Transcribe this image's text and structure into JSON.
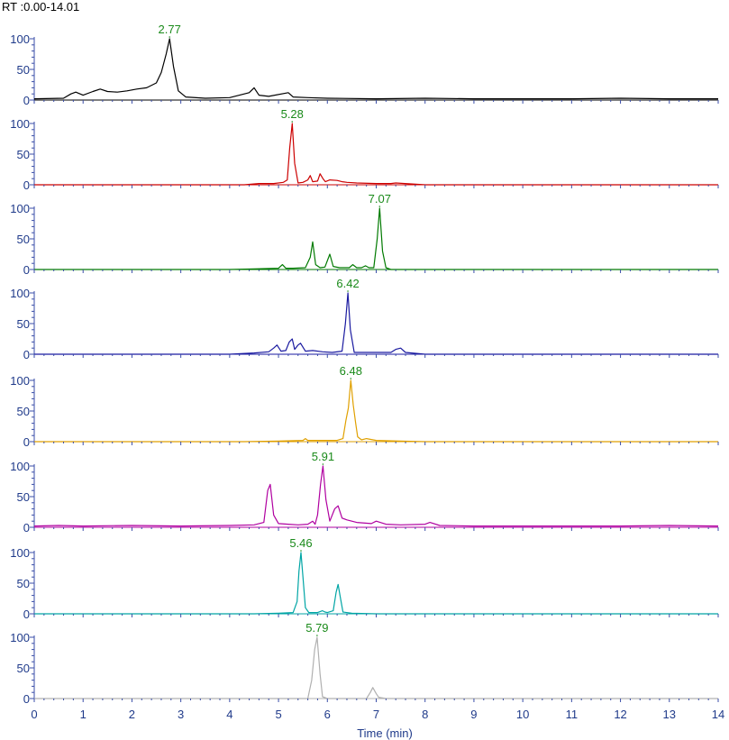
{
  "header": {
    "rt_range": "RT :0.00-14.01"
  },
  "chart_data": {
    "type": "line",
    "xlabel": "Time (min)",
    "xlim": [
      0,
      14
    ],
    "xticks": [
      "0",
      "1",
      "2",
      "3",
      "4",
      "5",
      "6",
      "7",
      "8",
      "9",
      "10",
      "11",
      "12",
      "13",
      "14"
    ],
    "ylim": [
      0,
      100
    ],
    "yticks": [
      "0",
      "50",
      "100"
    ],
    "grid": false,
    "series": [
      {
        "color": "#000000",
        "peak_label": "2.77",
        "x": [
          0,
          0.6,
          0.75,
          0.85,
          1.0,
          1.2,
          1.35,
          1.5,
          1.7,
          1.9,
          2.1,
          2.3,
          2.5,
          2.6,
          2.7,
          2.77,
          2.85,
          2.95,
          3.1,
          3.5,
          4.0,
          4.4,
          4.5,
          4.6,
          4.8,
          5.2,
          5.3,
          5.6,
          6.0,
          7.0,
          8.0,
          9.0,
          10.0,
          11.0,
          12.0,
          13.0,
          14.0
        ],
        "y": [
          2,
          3,
          10,
          13,
          8,
          14,
          18,
          14,
          13,
          15,
          18,
          20,
          28,
          45,
          75,
          100,
          55,
          15,
          5,
          3,
          4,
          12,
          20,
          8,
          6,
          12,
          5,
          4,
          3,
          2,
          3,
          2,
          2,
          2,
          3,
          2,
          2
        ]
      },
      {
        "color": "#cc0000",
        "peak_label": "5.28",
        "x": [
          0,
          4.3,
          4.6,
          4.9,
          5.1,
          5.18,
          5.23,
          5.28,
          5.33,
          5.4,
          5.5,
          5.6,
          5.65,
          5.7,
          5.8,
          5.85,
          5.91,
          5.96,
          6.05,
          6.2,
          6.3,
          6.4,
          6.6,
          7.0,
          7.3,
          7.4,
          8.0,
          10.0,
          14.0
        ],
        "y": [
          0,
          0,
          2,
          2,
          4,
          8,
          60,
          100,
          35,
          3,
          4,
          8,
          15,
          5,
          6,
          18,
          10,
          5,
          8,
          7,
          5,
          4,
          3,
          2,
          2,
          3,
          0,
          0,
          0
        ]
      },
      {
        "color": "#007a00",
        "peak_label": "7.07",
        "x": [
          0,
          4.0,
          4.5,
          5.0,
          5.08,
          5.15,
          5.3,
          5.55,
          5.65,
          5.7,
          5.76,
          5.85,
          5.95,
          6.05,
          6.12,
          6.25,
          6.45,
          6.52,
          6.6,
          6.7,
          6.78,
          6.85,
          6.95,
          7.02,
          7.07,
          7.13,
          7.2,
          7.3,
          8.0,
          14.0
        ],
        "y": [
          0,
          0,
          1,
          2,
          8,
          2,
          2,
          3,
          20,
          45,
          8,
          3,
          4,
          25,
          5,
          3,
          3,
          8,
          3,
          3,
          6,
          3,
          3,
          50,
          100,
          30,
          3,
          0,
          0,
          0
        ]
      },
      {
        "color": "#1a1aa0",
        "peak_label": "6.42",
        "x": [
          0,
          4.0,
          4.5,
          4.8,
          4.9,
          4.97,
          5.05,
          5.15,
          5.22,
          5.28,
          5.33,
          5.4,
          5.45,
          5.55,
          5.7,
          5.9,
          6.1,
          6.3,
          6.37,
          6.42,
          6.47,
          6.55,
          6.7,
          7.0,
          7.3,
          7.4,
          7.5,
          7.6,
          8.0,
          14.0
        ],
        "y": [
          0,
          0,
          2,
          4,
          10,
          15,
          5,
          6,
          20,
          25,
          8,
          15,
          18,
          5,
          6,
          4,
          3,
          5,
          50,
          100,
          40,
          3,
          3,
          3,
          3,
          8,
          10,
          3,
          0,
          0
        ]
      },
      {
        "color": "#e0a000",
        "peak_label": "6.48",
        "x": [
          0,
          4.3,
          5.0,
          5.5,
          5.55,
          5.6,
          5.9,
          6.2,
          6.32,
          6.38,
          6.43,
          6.48,
          6.53,
          6.58,
          6.62,
          6.7,
          6.8,
          7.0,
          7.5,
          8.0,
          14.0
        ],
        "y": [
          0,
          0,
          1,
          2,
          5,
          2,
          2,
          2,
          5,
          35,
          55,
          100,
          60,
          30,
          8,
          3,
          5,
          2,
          1,
          0,
          0
        ]
      },
      {
        "color": "#b000a0",
        "peak_label": "5.91",
        "x": [
          0,
          0.5,
          1.0,
          2.0,
          3.0,
          4.0,
          4.5,
          4.7,
          4.78,
          4.83,
          4.9,
          5.0,
          5.2,
          5.4,
          5.6,
          5.7,
          5.75,
          5.8,
          5.86,
          5.91,
          5.97,
          6.05,
          6.15,
          6.22,
          6.3,
          6.4,
          6.6,
          6.9,
          7.0,
          7.2,
          7.5,
          8.0,
          8.1,
          8.3,
          9.0,
          10.0,
          11.0,
          12.0,
          13.0,
          14.0
        ],
        "y": [
          2,
          3,
          2,
          3,
          2,
          3,
          4,
          8,
          60,
          70,
          20,
          6,
          5,
          4,
          5,
          10,
          5,
          20,
          70,
          100,
          45,
          10,
          30,
          35,
          15,
          12,
          8,
          6,
          10,
          5,
          4,
          5,
          8,
          3,
          2,
          2,
          2,
          2,
          3,
          2
        ],
        "secondary": {
          "color": "#00a5a5",
          "peak_label": "5.46",
          "x": [
            0,
            4.5,
            5.0,
            5.3,
            5.38,
            5.42,
            5.46,
            5.5,
            5.55,
            5.62,
            5.8,
            5.9,
            5.95,
            6.0,
            6.12,
            6.18,
            6.22,
            6.27,
            6.32,
            6.5,
            7.0,
            14.0
          ],
          "y": [
            0,
            0,
            1,
            2,
            20,
            70,
            100,
            60,
            10,
            2,
            2,
            5,
            3,
            2,
            5,
            35,
            48,
            25,
            3,
            1,
            0,
            0
          ]
        }
      },
      {
        "color": "#00a5a5",
        "peak_label": "5.46",
        "x": [
          0,
          4.5,
          5.0,
          5.3,
          5.38,
          5.42,
          5.46,
          5.5,
          5.55,
          5.62,
          5.8,
          5.9,
          5.95,
          6.0,
          6.12,
          6.18,
          6.22,
          6.27,
          6.32,
          6.5,
          7.0,
          14.0
        ],
        "y": [
          0,
          0,
          1,
          2,
          20,
          70,
          100,
          60,
          10,
          2,
          2,
          5,
          3,
          2,
          5,
          35,
          48,
          25,
          3,
          1,
          0,
          0
        ]
      },
      {
        "color": "#b0b0b0",
        "peak_label": "5.79",
        "x": [
          0,
          5.6,
          5.68,
          5.74,
          5.79,
          5.85,
          5.9,
          6.0,
          6.8,
          6.88,
          6.93,
          7.0,
          7.05,
          7.2,
          14.0
        ],
        "y": [
          0,
          0,
          30,
          80,
          100,
          40,
          3,
          0,
          0,
          10,
          18,
          8,
          2,
          0,
          0
        ]
      }
    ]
  }
}
